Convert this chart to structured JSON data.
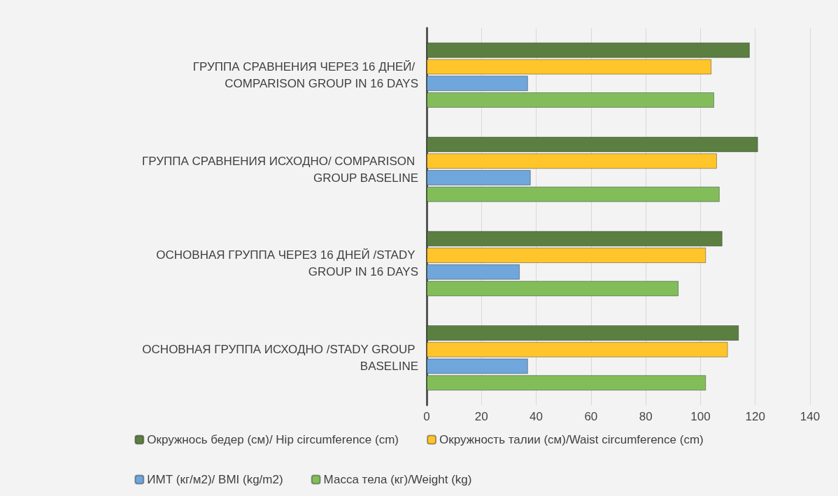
{
  "chart_data": {
    "type": "bar",
    "orientation": "horizontal",
    "categories": [
      "ГРУППА СРАВНЕНИЯ ЧЕРЕЗ 16 ДНЕЙ/ COMPARISON GROUP IN 16 DAYS",
      "ГРУППА СРАВНЕНИЯ ИСХОДНО/ COMPARISON GROUP BASELINE",
      "ОСНОВНАЯ ГРУППА ЧЕРЕЗ 16 ДНЕЙ /STADY GROUP IN 16 DAYS",
      "ОСНОВНАЯ ГРУППА ИСХОДНО /STADY GROUP BASELINE"
    ],
    "series": [
      {
        "name": "Окружнось бедер (см)/ Hip circumference (cm)",
        "color": "#5b7f41",
        "values": [
          118,
          121,
          108,
          114
        ]
      },
      {
        "name": "Окружность талии (см)/Waist circumference (cm)",
        "color": "#ffc52a",
        "values": [
          104,
          106,
          102,
          110
        ]
      },
      {
        "name": "ИМТ (кг/м2)/ BMI (kg/m2)",
        "color": "#6fa6dc",
        "values": [
          37,
          38,
          34,
          37
        ]
      },
      {
        "name": "Масса тела (кг)/Weight (kg)",
        "color": "#82bd5a",
        "values": [
          105,
          107,
          92,
          102
        ]
      }
    ],
    "xlim": [
      0,
      140
    ],
    "xticks": [
      0,
      20,
      40,
      60,
      80,
      100,
      120,
      140
    ],
    "grid": "x",
    "legend": "bottom"
  }
}
